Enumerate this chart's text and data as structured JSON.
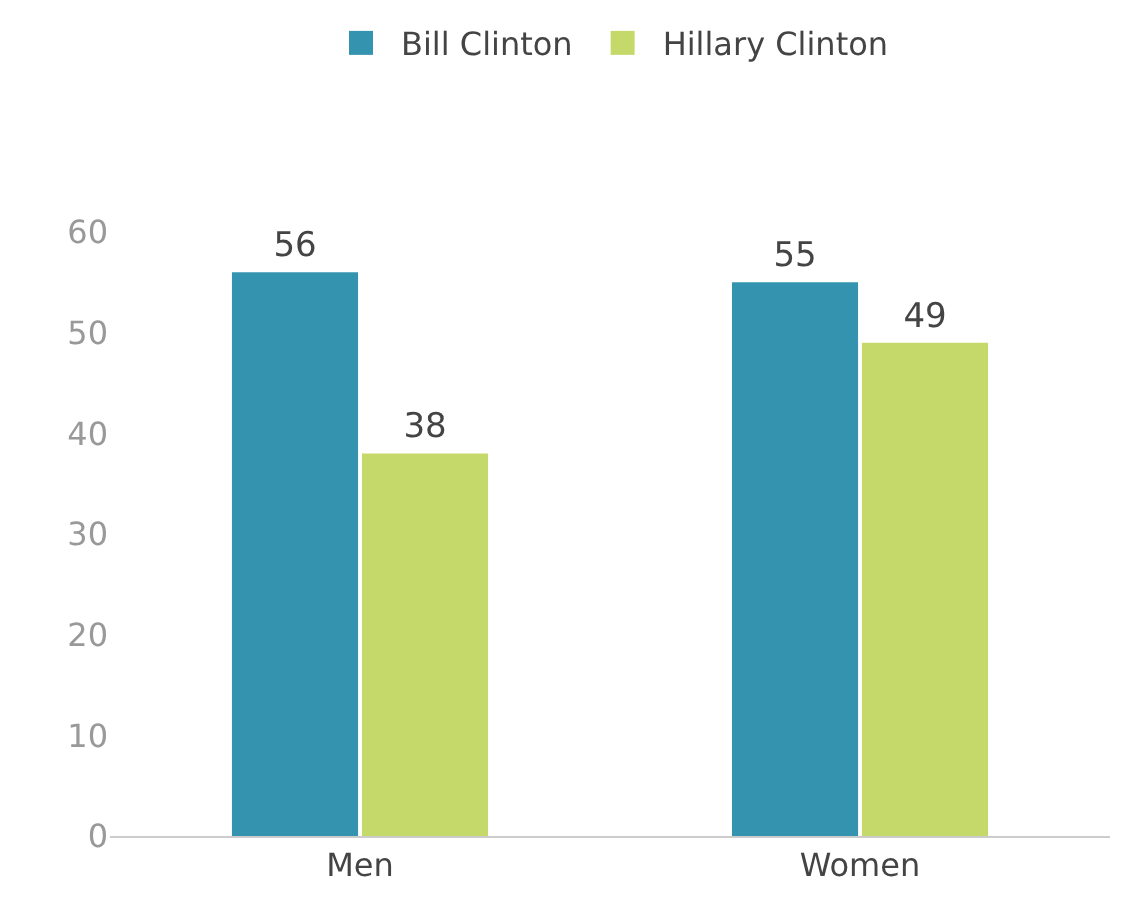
{
  "chart_data": {
    "type": "bar",
    "categories": [
      "Men",
      "Women"
    ],
    "series": [
      {
        "name": "Bill Clinton",
        "color": "#3494b0",
        "values": [
          56,
          55
        ]
      },
      {
        "name": "Hillary Clinton",
        "color": "#c5d96a",
        "values": [
          38,
          49
        ]
      }
    ],
    "ylim": [
      0,
      60
    ],
    "yticks": [
      0,
      10,
      20,
      30,
      40,
      50,
      60
    ],
    "legend": "top",
    "data_labels": true
  }
}
